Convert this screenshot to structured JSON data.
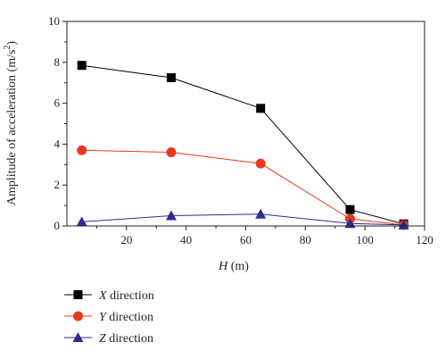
{
  "chart_data": {
    "type": "line",
    "xlabel": {
      "var": "H",
      "unit": "(m)"
    },
    "ylabel": {
      "main": "Amplitude of acceleration (m/s",
      "sup": "2",
      "end": ")"
    },
    "xlim": [
      0,
      120
    ],
    "ylim": [
      0,
      10
    ],
    "xticks": [
      20,
      40,
      60,
      80,
      100,
      120
    ],
    "yticks": [
      0,
      2,
      4,
      6,
      8,
      10
    ],
    "x": [
      5,
      35,
      65,
      95,
      113
    ],
    "series": [
      {
        "var": "X",
        "label": " direction",
        "color": "#000000",
        "marker": "square",
        "values": [
          7.85,
          7.25,
          5.75,
          0.8,
          0.1
        ]
      },
      {
        "var": "Y",
        "label": " direction",
        "color": "#e8391d",
        "marker": "circle",
        "values": [
          3.7,
          3.6,
          3.05,
          0.35,
          0.05
        ]
      },
      {
        "var": "Z",
        "label": " direction",
        "color": "#2f2b8f",
        "marker": "triangle",
        "values": [
          0.2,
          0.5,
          0.58,
          0.12,
          0.05
        ]
      }
    ],
    "grid": false,
    "legend_position": "bottom-left"
  }
}
